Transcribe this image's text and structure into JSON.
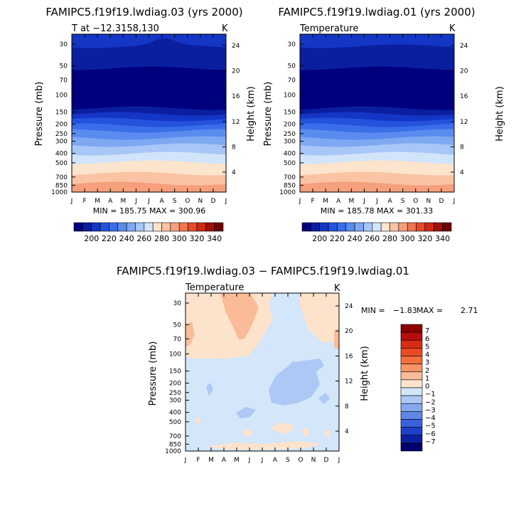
{
  "months": [
    "J",
    "F",
    "M",
    "A",
    "M",
    "J",
    "J",
    "A",
    "S",
    "O",
    "N",
    "D",
    "J"
  ],
  "pressure_ticks": [
    "30",
    "50",
    "70",
    "100",
    "150",
    "200",
    "250",
    "300",
    "400",
    "500",
    "700",
    "850",
    "1000"
  ],
  "height_ticks": [
    "24",
    "20",
    "16",
    "12",
    "8",
    "4"
  ],
  "top_colorbar_labels": [
    "200",
    "220",
    "240",
    "260",
    "280",
    "300",
    "320",
    "340"
  ],
  "diff_colorbar_labels": [
    "7",
    "6",
    "5",
    "4",
    "3",
    "2",
    "1",
    "0",
    "−1",
    "−2",
    "−3",
    "−4",
    "−5",
    "−6",
    "−7"
  ],
  "colors": {
    "temperature": [
      "#00007f",
      "#0a1ea0",
      "#1436c4",
      "#2452dc",
      "#3a6de8",
      "#5a8bee",
      "#7fa8f2",
      "#a8c6f6",
      "#d2e4fa",
      "#fde4cc",
      "#fac3a4",
      "#f59f7c",
      "#ef7650",
      "#e64b2c",
      "#cc2a14",
      "#a01008",
      "#6e0000"
    ],
    "difference": [
      "#8c0000",
      "#b40e0e",
      "#d62c14",
      "#ec4a24",
      "#f56e3c",
      "#f89466",
      "#fabc98",
      "#fde3cc",
      "#d3e6fa",
      "#adc8f4",
      "#86a8ee",
      "#5f86e8",
      "#3a62de",
      "#1e40c8",
      "#0c1f9e",
      "#00006e"
    ]
  },
  "chart_data": [
    {
      "type": "heatmap",
      "title": "FAMIPC5.f19f19.lwdiag.03 (yrs 2000)",
      "subtitle_left": "T at −12.3158,130",
      "units": "K",
      "xlabel": "",
      "ylabel": "Pressure (mb)",
      "ylabel_right": "Height (km)",
      "stats": "MIN = 185.75 MAX = 300.96",
      "min": 185.75,
      "max": 300.96
    },
    {
      "type": "heatmap",
      "title": "FAMIPC5.f19f19.lwdiag.01 (yrs 2000)",
      "subtitle_left": "Temperature",
      "units": "K",
      "xlabel": "",
      "ylabel": "Pressure (mb)",
      "ylabel_right": "Height (km)",
      "stats": "MIN = 185.78 MAX = 301.33",
      "min": 185.78,
      "max": 301.33
    },
    {
      "type": "heatmap",
      "title": "FAMIPC5.f19f19.lwdiag.03 − FAMIPC5.f19f19.lwdiag.01",
      "subtitle_left": "Temperature",
      "units": "K",
      "ylabel": "Pressure (mb)",
      "ylabel_right": "Height (km)",
      "stats_min_label": "MIN =",
      "stats_min": "−1.83",
      "stats_max_label": "MAX =",
      "stats_max": "2.71",
      "min": -1.83,
      "max": 2.71
    }
  ]
}
